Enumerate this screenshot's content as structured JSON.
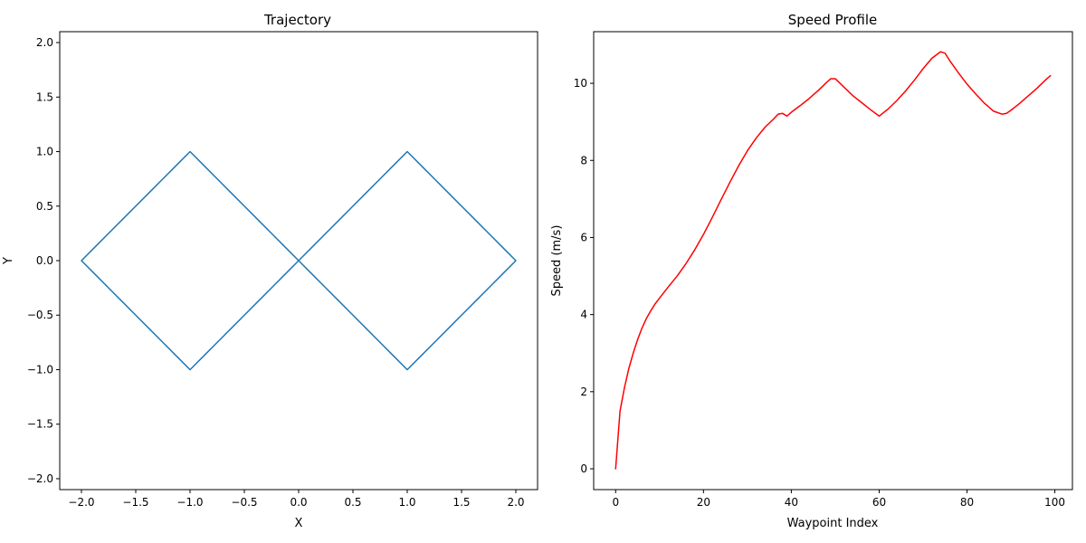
{
  "chart_data": [
    {
      "type": "line",
      "title": "Trajectory",
      "xlabel": "X",
      "ylabel": "Y",
      "xlim": [
        -2.2,
        2.2
      ],
      "ylim": [
        -2.1,
        2.1
      ],
      "xticks": [
        -2.0,
        -1.5,
        -1.0,
        -0.5,
        0.0,
        0.5,
        1.0,
        1.5,
        2.0
      ],
      "xtick_labels": [
        "−2.0",
        "−1.5",
        "−1.0",
        "−0.5",
        "0.0",
        "0.5",
        "1.0",
        "1.5",
        "2.0"
      ],
      "yticks": [
        -2.0,
        -1.5,
        -1.0,
        -0.5,
        0.0,
        0.5,
        1.0,
        1.5,
        2.0
      ],
      "ytick_labels": [
        "−2.0",
        "−1.5",
        "−1.0",
        "−0.5",
        "0.0",
        "0.5",
        "1.0",
        "1.5",
        "2.0"
      ],
      "grid": false,
      "series": [
        {
          "color": "#1f77b4",
          "x": [
            0.0,
            0.125,
            0.25,
            0.375,
            0.5,
            0.625,
            0.75,
            0.875,
            1.0,
            1.125,
            1.25,
            1.375,
            1.5,
            1.625,
            1.75,
            1.875,
            2.0,
            1.875,
            1.75,
            1.625,
            1.5,
            1.375,
            1.25,
            1.125,
            1.0,
            0.875,
            0.75,
            0.625,
            0.5,
            0.375,
            0.25,
            0.125,
            0.0,
            -0.125,
            -0.25,
            -0.375,
            -0.5,
            -0.625,
            -0.75,
            -0.875,
            -1.0,
            -1.125,
            -1.25,
            -1.375,
            -1.5,
            -1.625,
            -1.75,
            -1.875,
            -2.0,
            -1.875,
            -1.75,
            -1.625,
            -1.5,
            -1.375,
            -1.25,
            -1.125,
            -1.0,
            -0.875,
            -0.75,
            -0.625,
            -0.5,
            -0.375,
            -0.25,
            -0.125,
            0.0
          ],
          "y": [
            0.0,
            0.125,
            0.25,
            0.375,
            0.5,
            0.625,
            0.75,
            0.875,
            1.0,
            0.875,
            0.75,
            0.625,
            0.5,
            0.375,
            0.25,
            0.125,
            0.0,
            -0.125,
            -0.25,
            -0.375,
            -0.5,
            -0.625,
            -0.75,
            -0.875,
            -1.0,
            -0.875,
            -0.75,
            -0.625,
            -0.5,
            -0.375,
            -0.25,
            -0.125,
            0.0,
            0.125,
            0.25,
            0.375,
            0.5,
            0.625,
            0.75,
            0.875,
            1.0,
            0.875,
            0.75,
            0.625,
            0.5,
            0.375,
            0.25,
            0.125,
            0.0,
            -0.125,
            -0.25,
            -0.375,
            -0.5,
            -0.625,
            -0.75,
            -0.875,
            -1.0,
            -0.875,
            -0.75,
            -0.625,
            -0.5,
            -0.375,
            -0.25,
            -0.125,
            0.0
          ]
        }
      ]
    },
    {
      "type": "line",
      "title": "Speed Profile",
      "xlabel": "Waypoint Index",
      "ylabel": "Speed (m/s)",
      "xlim": [
        -5,
        104
      ],
      "ylim": [
        -0.54,
        11.34
      ],
      "xticks": [
        0,
        20,
        40,
        60,
        80,
        100
      ],
      "xtick_labels": [
        "0",
        "20",
        "40",
        "60",
        "80",
        "100"
      ],
      "yticks": [
        0,
        2,
        4,
        6,
        8,
        10
      ],
      "ytick_labels": [
        "0",
        "2",
        "4",
        "6",
        "8",
        "10"
      ],
      "grid": false,
      "series": [
        {
          "color": "#ff0000",
          "x": [
            0,
            1,
            2,
            3,
            4,
            5,
            6,
            7,
            8,
            9,
            10,
            12,
            14,
            16,
            18,
            20,
            22,
            24,
            26,
            28,
            30,
            32,
            34,
            36,
            37,
            38,
            39,
            40,
            42,
            44,
            46,
            48,
            49,
            50,
            52,
            54,
            56,
            58,
            60,
            62,
            64,
            66,
            68,
            70,
            72,
            74,
            75,
            76,
            78,
            80,
            82,
            84,
            86,
            88,
            89,
            90,
            92,
            94,
            96,
            98,
            99
          ],
          "y": [
            0.0,
            1.5,
            2.1,
            2.6,
            3.0,
            3.35,
            3.65,
            3.9,
            4.1,
            4.28,
            4.43,
            4.72,
            5.0,
            5.32,
            5.68,
            6.08,
            6.52,
            6.98,
            7.43,
            7.86,
            8.25,
            8.58,
            8.86,
            9.08,
            9.2,
            9.22,
            9.15,
            9.25,
            9.42,
            9.6,
            9.8,
            10.02,
            10.12,
            10.12,
            9.9,
            9.68,
            9.5,
            9.32,
            9.15,
            9.33,
            9.55,
            9.8,
            10.08,
            10.38,
            10.65,
            10.82,
            10.78,
            10.6,
            10.28,
            9.98,
            9.72,
            9.48,
            9.28,
            9.2,
            9.22,
            9.3,
            9.48,
            9.68,
            9.88,
            10.1,
            10.2
          ]
        }
      ]
    }
  ]
}
